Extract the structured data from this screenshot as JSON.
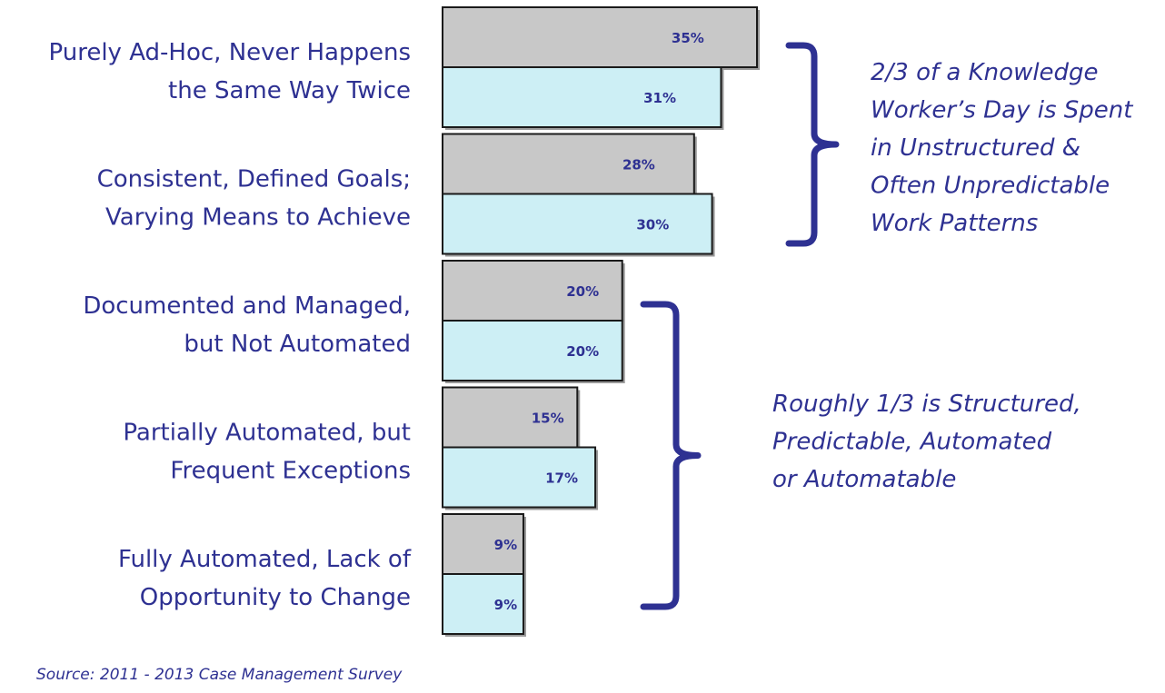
{
  "chart_data": {
    "type": "bar",
    "orientation": "horizontal",
    "categories": [
      [
        "Purely Ad-Hoc, Never Happens",
        "the Same Way Twice"
      ],
      [
        "Consistent, Defined Goals;",
        "Varying Means to Achieve"
      ],
      [
        "Documented and Managed,",
        "but Not Automated"
      ],
      [
        "Partially Automated, but",
        "Frequent Exceptions"
      ],
      [
        "Fully Automated, Lack of",
        "Opportunity to Change"
      ]
    ],
    "series": [
      {
        "values": [
          35,
          28,
          20,
          15,
          9
        ],
        "labels": [
          "35%",
          "28%",
          "20%",
          "15%",
          "9%"
        ],
        "color": "#c8c8c8"
      },
      {
        "values": [
          31,
          30,
          20,
          17,
          9
        ],
        "labels": [
          "31%",
          "30%",
          "20%",
          "17%",
          "9%"
        ],
        "color": "#cdeff5"
      }
    ],
    "xlim": [
      0,
      35
    ],
    "grid": false,
    "legend": "none",
    "annotations": [
      {
        "groups": [
          0,
          1
        ],
        "lines": [
          "2/3 of a Knowledge",
          "Worker’s Day is Spent",
          "in Unstructured &",
          "Often Unpredictable",
          "Work Patterns"
        ]
      },
      {
        "groups": [
          2,
          3,
          4
        ],
        "lines": [
          "Roughly 1/3 is Structured,",
          "Predictable, Automated",
          "or Automatable"
        ]
      }
    ]
  },
  "source": "Source: 2011 - 2013 Case Management Survey"
}
